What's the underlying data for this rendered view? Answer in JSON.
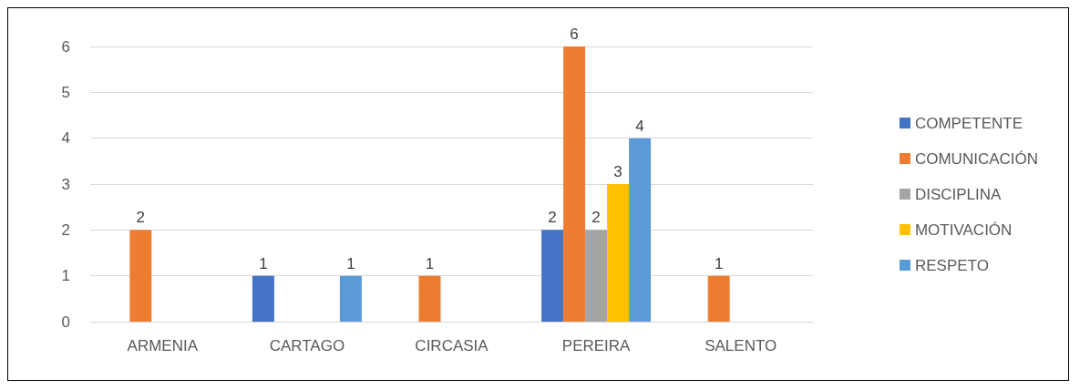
{
  "chart_data": {
    "type": "bar",
    "categories": [
      "ARMENIA",
      "CARTAGO",
      "CIRCASIA",
      "PEREIRA",
      "SALENTO"
    ],
    "series": [
      {
        "name": "COMPETENTE",
        "color": "#4472c4",
        "values": [
          null,
          1,
          null,
          2,
          null
        ]
      },
      {
        "name": "COMUNICACIÓN",
        "color": "#ed7d31",
        "values": [
          2,
          null,
          1,
          6,
          1
        ]
      },
      {
        "name": "DISCIPLINA",
        "color": "#a5a5a5",
        "values": [
          null,
          null,
          null,
          2,
          null
        ]
      },
      {
        "name": "MOTIVACIÓN",
        "color": "#ffc000",
        "values": [
          null,
          null,
          null,
          3,
          null
        ]
      },
      {
        "name": "RESPETO",
        "color": "#5b9bd5",
        "values": [
          null,
          1,
          null,
          4,
          null
        ]
      }
    ],
    "ylim": [
      0,
      6
    ],
    "yticks": [
      0,
      1,
      2,
      3,
      4,
      5,
      6
    ],
    "grid": "y",
    "legend": "right",
    "data_labels": true
  }
}
